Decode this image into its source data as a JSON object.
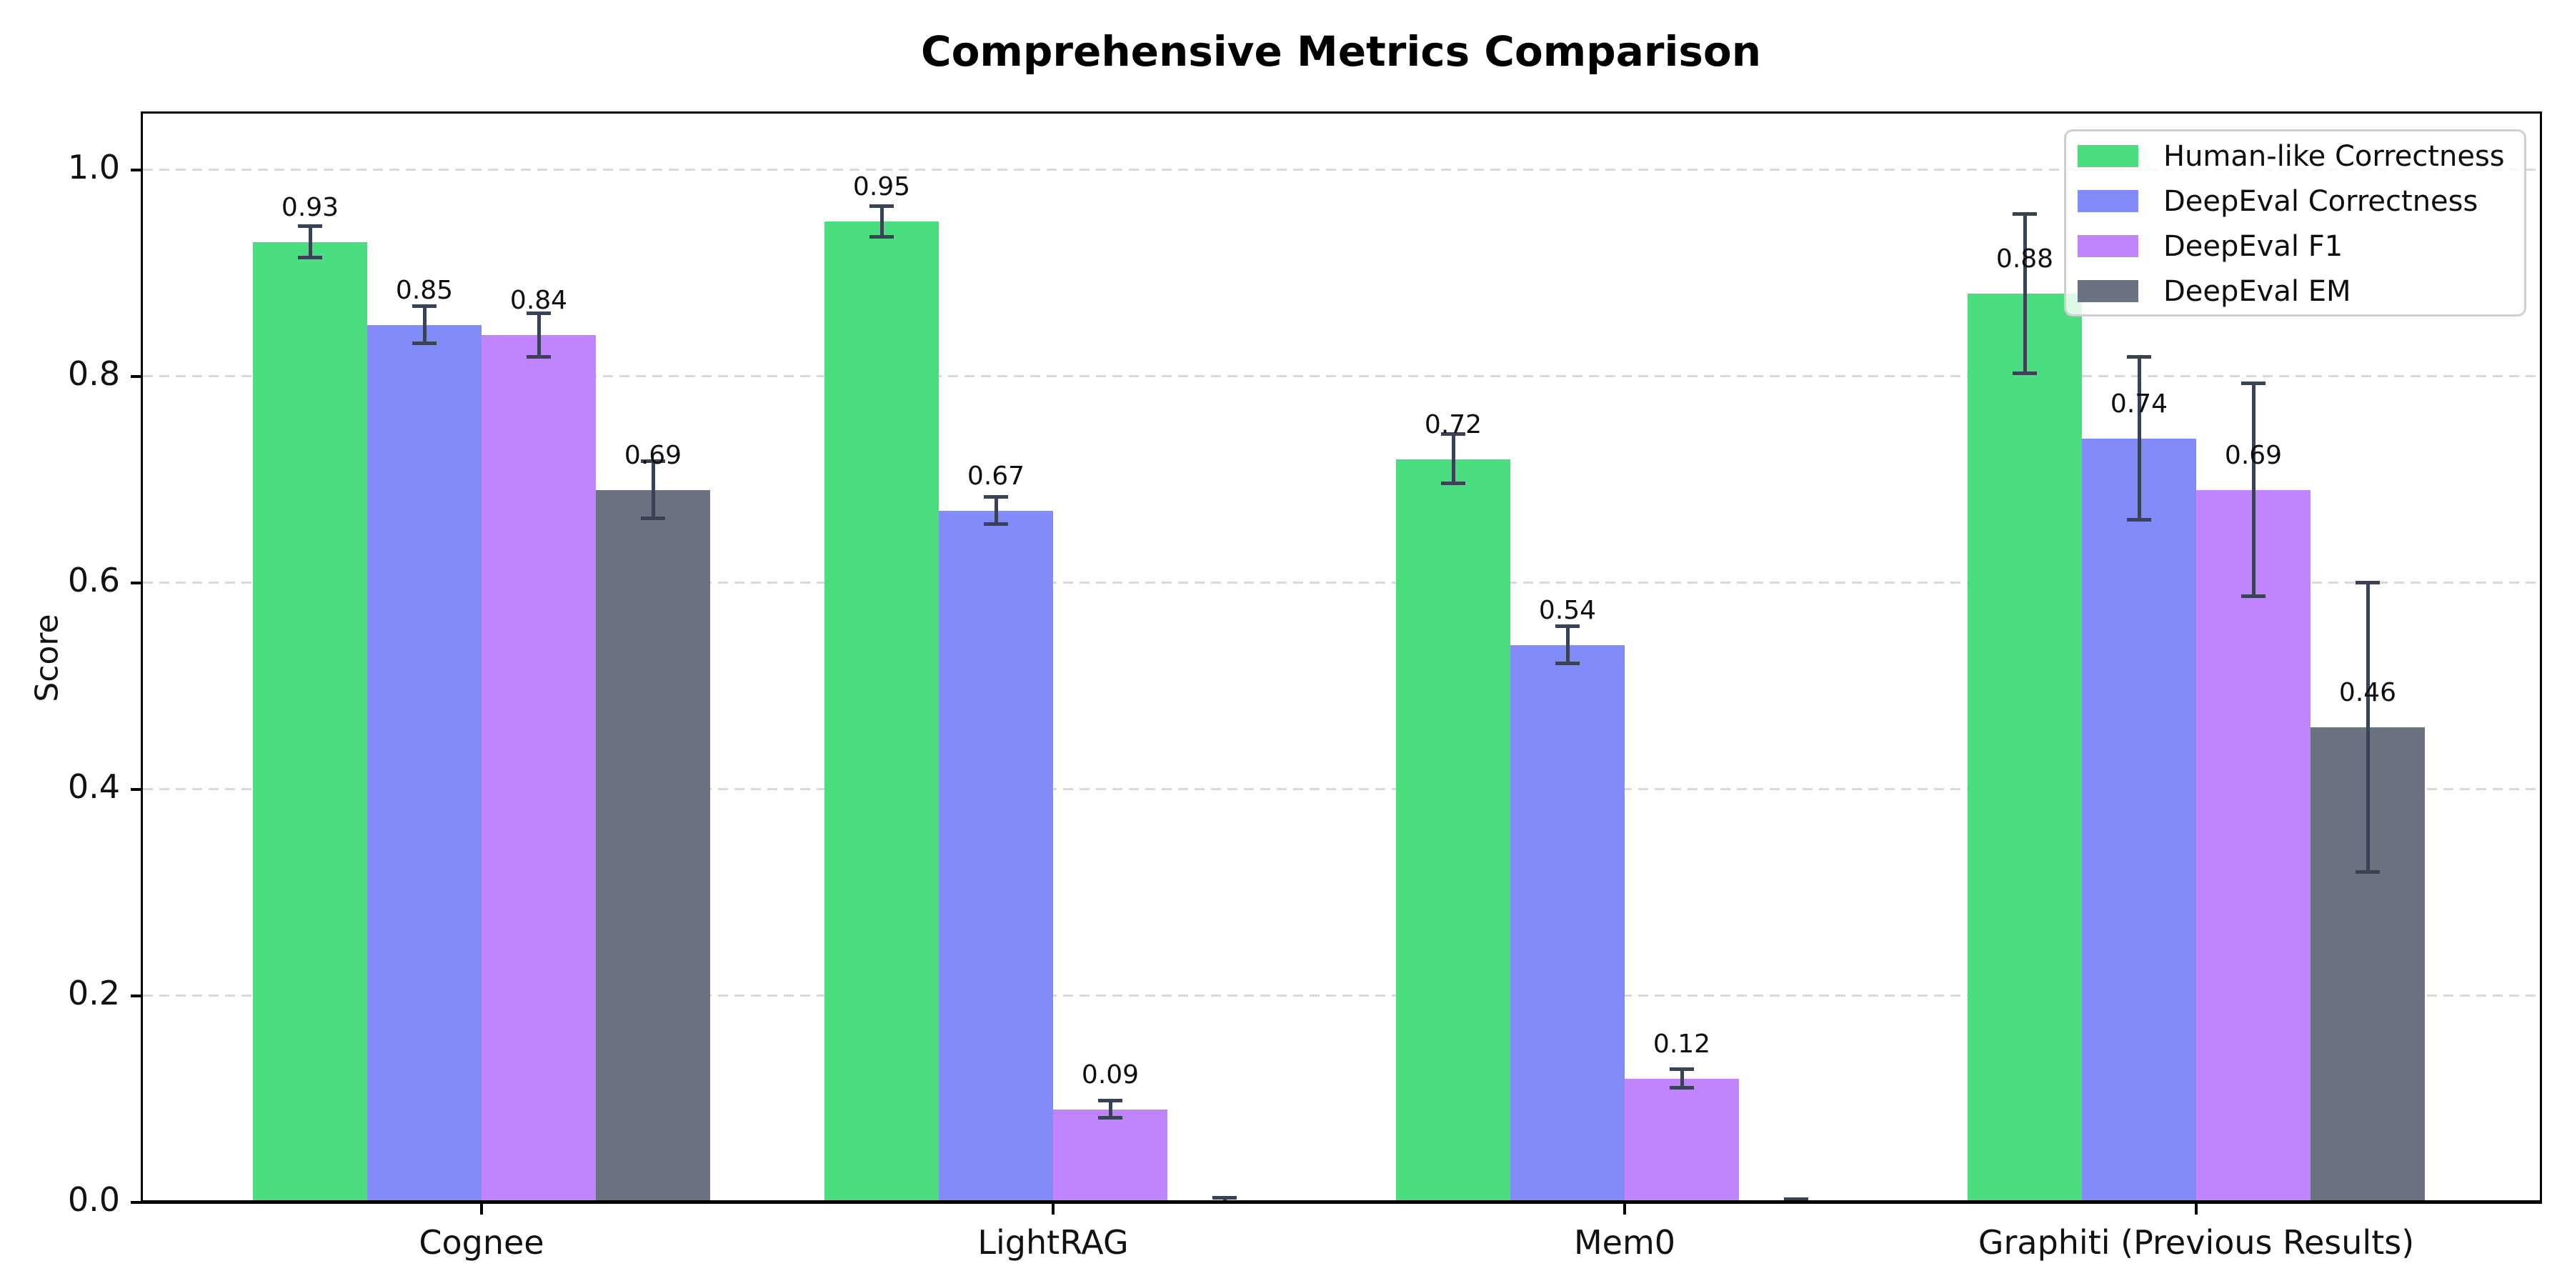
{
  "title": "Comprehensive Metrics Comparison",
  "colors": {
    "background": "#ffffff",
    "grid": "#d9d9d9",
    "axis": "#000000",
    "error_bar": "#3a4356",
    "text": "#0d0d0d"
  },
  "chart_data": {
    "type": "bar",
    "title": "Comprehensive Metrics Comparison",
    "xlabel": "",
    "ylabel": "Score",
    "ylim": [
      0,
      1.054
    ],
    "grid": "horizontal dashed",
    "legend_position": "upper right",
    "yticks": [
      "0.0",
      "0.2",
      "0.4",
      "0.6",
      "0.8",
      "1.0"
    ],
    "ytick_values": [
      0.0,
      0.2,
      0.4,
      0.6,
      0.8,
      1.0
    ],
    "categories": [
      "Cognee",
      "LightRAG",
      "Mem0",
      "Graphiti (Previous Results)"
    ],
    "series": [
      {
        "name": "Human-like Correctness",
        "color": "#4ade80",
        "values": [
          0.93,
          0.95,
          0.72,
          0.88
        ],
        "errors": [
          0.015,
          0.015,
          0.024,
          0.077
        ],
        "labels": [
          "0.93",
          "0.95",
          "0.72",
          "0.88"
        ]
      },
      {
        "name": "DeepEval Correctness",
        "color": "#818cf8",
        "values": [
          0.85,
          0.67,
          0.54,
          0.74
        ],
        "errors": [
          0.018,
          0.013,
          0.018,
          0.079
        ],
        "labels": [
          "0.85",
          "0.67",
          "0.54",
          "0.74"
        ]
      },
      {
        "name": "DeepEval F1",
        "color": "#c084fc",
        "values": [
          0.84,
          0.09,
          0.12,
          0.69
        ],
        "errors": [
          0.021,
          0.008,
          0.009,
          0.103
        ],
        "labels": [
          "0.84",
          "0.09",
          "0.12",
          "0.69"
        ]
      },
      {
        "name": "DeepEval EM",
        "color": "#6b7280",
        "values": [
          0.69,
          0.0,
          0.0,
          0.46
        ],
        "errors": [
          0.028,
          0.004,
          0.003,
          0.14
        ],
        "labels": [
          "0.69",
          null,
          null,
          "0.46"
        ]
      }
    ]
  }
}
